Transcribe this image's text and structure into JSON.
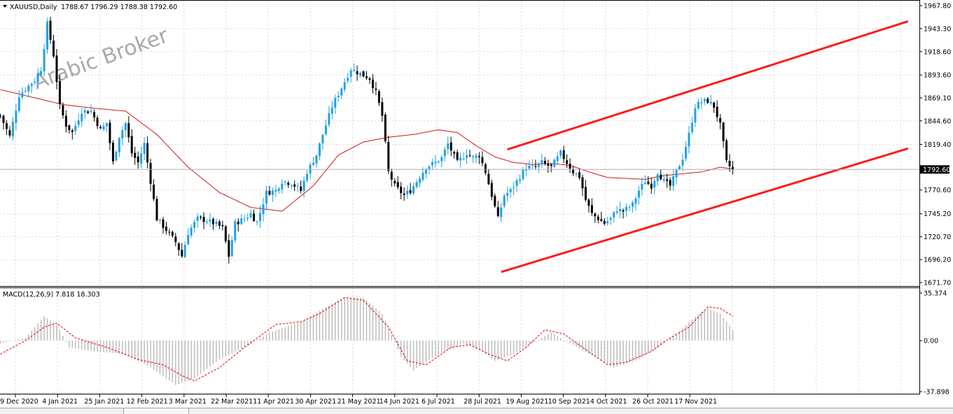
{
  "chart_data": [
    {
      "type": "candlestick",
      "title": "XAUUSD,Daily",
      "ohlc_readout": "1788.67 1796.29 1788.38 1792.60",
      "watermark": "Arabic Broker",
      "current_price": "1792.60",
      "current_price_value": 1792.6,
      "ylim": [
        1671.7,
        1967.8
      ],
      "y_ticks": [
        {
          "label": "1967.80",
          "value": 1967.8
        },
        {
          "label": "1943.30",
          "value": 1943.3
        },
        {
          "label": "1918.60",
          "value": 1918.6
        },
        {
          "label": "1893.60",
          "value": 1893.6
        },
        {
          "label": "1869.10",
          "value": 1869.1
        },
        {
          "label": "1844.60",
          "value": 1844.6
        },
        {
          "label": "1819.40",
          "value": 1819.4
        },
        {
          "label": "1770.60",
          "value": 1770.6
        },
        {
          "label": "1745.20",
          "value": 1745.2
        },
        {
          "label": "1720.70",
          "value": 1720.7
        },
        {
          "label": "1696.20",
          "value": 1696.2
        },
        {
          "label": "1671.70",
          "value": 1671.7
        }
      ],
      "x_ticks": [
        "9 Dec 2020",
        "4 Jan 2021",
        "25 Jan 2021",
        "12 Feb 2021",
        "3 Mar 2021",
        "22 Mar 2021",
        "11 Apr 2021",
        "30 Apr 2021",
        "21 May 2021",
        "14 Jun 2021",
        "6 Jul 2021",
        "28 Jul 2021",
        "19 Aug 2021",
        "10 Sep 2021",
        "4 Oct 2021",
        "26 Oct 2021",
        "17 Nov 2021"
      ],
      "anchors": [
        [
          0,
          1850
        ],
        [
          3,
          1828
        ],
        [
          6,
          1872
        ],
        [
          9,
          1882
        ],
        [
          11,
          1888
        ],
        [
          13,
          1900
        ],
        [
          15,
          1948
        ],
        [
          17,
          1915
        ],
        [
          19,
          1860
        ],
        [
          21,
          1840
        ],
        [
          23,
          1832
        ],
        [
          26,
          1855
        ],
        [
          29,
          1855
        ],
        [
          32,
          1835
        ],
        [
          34,
          1842
        ],
        [
          36,
          1800
        ],
        [
          38,
          1828
        ],
        [
          40,
          1842
        ],
        [
          42,
          1810
        ],
        [
          44,
          1800
        ],
        [
          46,
          1820
        ],
        [
          48,
          1780
        ],
        [
          50,
          1740
        ],
        [
          53,
          1728
        ],
        [
          56,
          1715
        ],
        [
          58,
          1700
        ],
        [
          60,
          1725
        ],
        [
          63,
          1740
        ],
        [
          66,
          1738
        ],
        [
          69,
          1734
        ],
        [
          71,
          1730
        ],
        [
          73,
          1700
        ],
        [
          75,
          1735
        ],
        [
          78,
          1740
        ],
        [
          80,
          1745
        ],
        [
          82,
          1736
        ],
        [
          85,
          1768
        ],
        [
          88,
          1770
        ],
        [
          90,
          1780
        ],
        [
          93,
          1778
        ],
        [
          96,
          1770
        ],
        [
          98,
          1790
        ],
        [
          101,
          1808
        ],
        [
          103,
          1830
        ],
        [
          106,
          1860
        ],
        [
          109,
          1880
        ],
        [
          112,
          1900
        ],
        [
          115,
          1895
        ],
        [
          118,
          1890
        ],
        [
          120,
          1875
        ],
        [
          122,
          1850
        ],
        [
          124,
          1790
        ],
        [
          126,
          1775
        ],
        [
          129,
          1765
        ],
        [
          131,
          1770
        ],
        [
          133,
          1780
        ],
        [
          136,
          1795
        ],
        [
          139,
          1800
        ],
        [
          141,
          1805
        ],
        [
          143,
          1820
        ],
        [
          146,
          1800
        ],
        [
          149,
          1810
        ],
        [
          151,
          1805
        ],
        [
          153,
          1808
        ],
        [
          155,
          1790
        ],
        [
          157,
          1765
        ],
        [
          159,
          1740
        ],
        [
          161,
          1765
        ],
        [
          163,
          1770
        ],
        [
          166,
          1785
        ],
        [
          168,
          1795
        ],
        [
          171,
          1795
        ],
        [
          173,
          1800
        ],
        [
          176,
          1795
        ],
        [
          179,
          1810
        ],
        [
          181,
          1800
        ],
        [
          183,
          1790
        ],
        [
          185,
          1785
        ],
        [
          187,
          1760
        ],
        [
          189,
          1745
        ],
        [
          191,
          1740
        ],
        [
          193,
          1735
        ],
        [
          195,
          1740
        ],
        [
          197,
          1750
        ],
        [
          199,
          1748
        ],
        [
          202,
          1755
        ],
        [
          204,
          1770
        ],
        [
          206,
          1780
        ],
        [
          208,
          1775
        ],
        [
          210,
          1790
        ],
        [
          212,
          1780
        ],
        [
          214,
          1775
        ],
        [
          216,
          1790
        ],
        [
          218,
          1805
        ],
        [
          220,
          1830
        ],
        [
          222,
          1860
        ],
        [
          224,
          1865
        ],
        [
          226,
          1866
        ],
        [
          228,
          1860
        ],
        [
          230,
          1840
        ],
        [
          232,
          1800
        ],
        [
          234,
          1792
        ]
      ],
      "moving_average": [
        [
          0,
          1878
        ],
        [
          10,
          1870
        ],
        [
          20,
          1862
        ],
        [
          30,
          1858
        ],
        [
          40,
          1855
        ],
        [
          50,
          1830
        ],
        [
          60,
          1795
        ],
        [
          70,
          1768
        ],
        [
          80,
          1752
        ],
        [
          90,
          1748
        ],
        [
          100,
          1775
        ],
        [
          108,
          1808
        ],
        [
          116,
          1822
        ],
        [
          124,
          1827
        ],
        [
          132,
          1830
        ],
        [
          140,
          1835
        ],
        [
          146,
          1832
        ],
        [
          152,
          1818
        ],
        [
          158,
          1806
        ],
        [
          164,
          1800
        ],
        [
          170,
          1798
        ],
        [
          176,
          1799
        ],
        [
          182,
          1797
        ],
        [
          188,
          1790
        ],
        [
          194,
          1784
        ],
        [
          200,
          1783
        ],
        [
          206,
          1782
        ],
        [
          212,
          1786
        ],
        [
          218,
          1788
        ],
        [
          224,
          1790
        ],
        [
          230,
          1795
        ],
        [
          234,
          1793
        ]
      ],
      "channel_upper": [
        [
          162,
          1814
        ],
        [
          290,
          1951
        ]
      ],
      "channel_lower": [
        [
          160,
          1683
        ],
        [
          290,
          1815
        ]
      ]
    },
    {
      "type": "macd",
      "title": "MACD(12,26,9) 7.818 18.303",
      "ylim": [
        -37.898,
        35.374
      ],
      "y_ticks": [
        {
          "label": "35.374",
          "value": 35.374
        },
        {
          "label": "0.00",
          "value": 0
        },
        {
          "label": "-37.898",
          "value": -37.898
        }
      ],
      "macd_anchors": [
        [
          0,
          -2
        ],
        [
          8,
          2
        ],
        [
          14,
          18
        ],
        [
          18,
          12
        ],
        [
          22,
          -5
        ],
        [
          30,
          -8
        ],
        [
          40,
          -10
        ],
        [
          48,
          -20
        ],
        [
          56,
          -33
        ],
        [
          62,
          -28
        ],
        [
          70,
          -14
        ],
        [
          78,
          -5
        ],
        [
          86,
          6
        ],
        [
          96,
          14
        ],
        [
          104,
          25
        ],
        [
          110,
          32
        ],
        [
          116,
          32
        ],
        [
          122,
          20
        ],
        [
          128,
          -12
        ],
        [
          132,
          -22
        ],
        [
          140,
          -10
        ],
        [
          148,
          -2
        ],
        [
          154,
          -8
        ],
        [
          158,
          -15
        ],
        [
          164,
          -10
        ],
        [
          170,
          -2
        ],
        [
          176,
          6
        ],
        [
          182,
          -2
        ],
        [
          190,
          -12
        ],
        [
          196,
          -20
        ],
        [
          204,
          -14
        ],
        [
          210,
          -5
        ],
        [
          216,
          5
        ],
        [
          222,
          18
        ],
        [
          226,
          24
        ],
        [
          230,
          20
        ],
        [
          234,
          7.8
        ]
      ],
      "signal_anchors": [
        [
          0,
          -10
        ],
        [
          8,
          0
        ],
        [
          14,
          10
        ],
        [
          18,
          13
        ],
        [
          24,
          2
        ],
        [
          34,
          -5
        ],
        [
          44,
          -14
        ],
        [
          52,
          -18
        ],
        [
          58,
          -26
        ],
        [
          62,
          -30
        ],
        [
          70,
          -20
        ],
        [
          78,
          -5
        ],
        [
          88,
          12
        ],
        [
          96,
          14
        ],
        [
          102,
          20
        ],
        [
          110,
          32
        ],
        [
          116,
          30
        ],
        [
          124,
          10
        ],
        [
          130,
          -15
        ],
        [
          136,
          -18
        ],
        [
          144,
          -5
        ],
        [
          150,
          -3
        ],
        [
          156,
          -10
        ],
        [
          162,
          -15
        ],
        [
          168,
          -5
        ],
        [
          174,
          8
        ],
        [
          180,
          5
        ],
        [
          186,
          -5
        ],
        [
          194,
          -18
        ],
        [
          200,
          -16
        ],
        [
          208,
          -8
        ],
        [
          214,
          2
        ],
        [
          220,
          10
        ],
        [
          226,
          25
        ],
        [
          230,
          24
        ],
        [
          234,
          18.3
        ]
      ]
    }
  ]
}
